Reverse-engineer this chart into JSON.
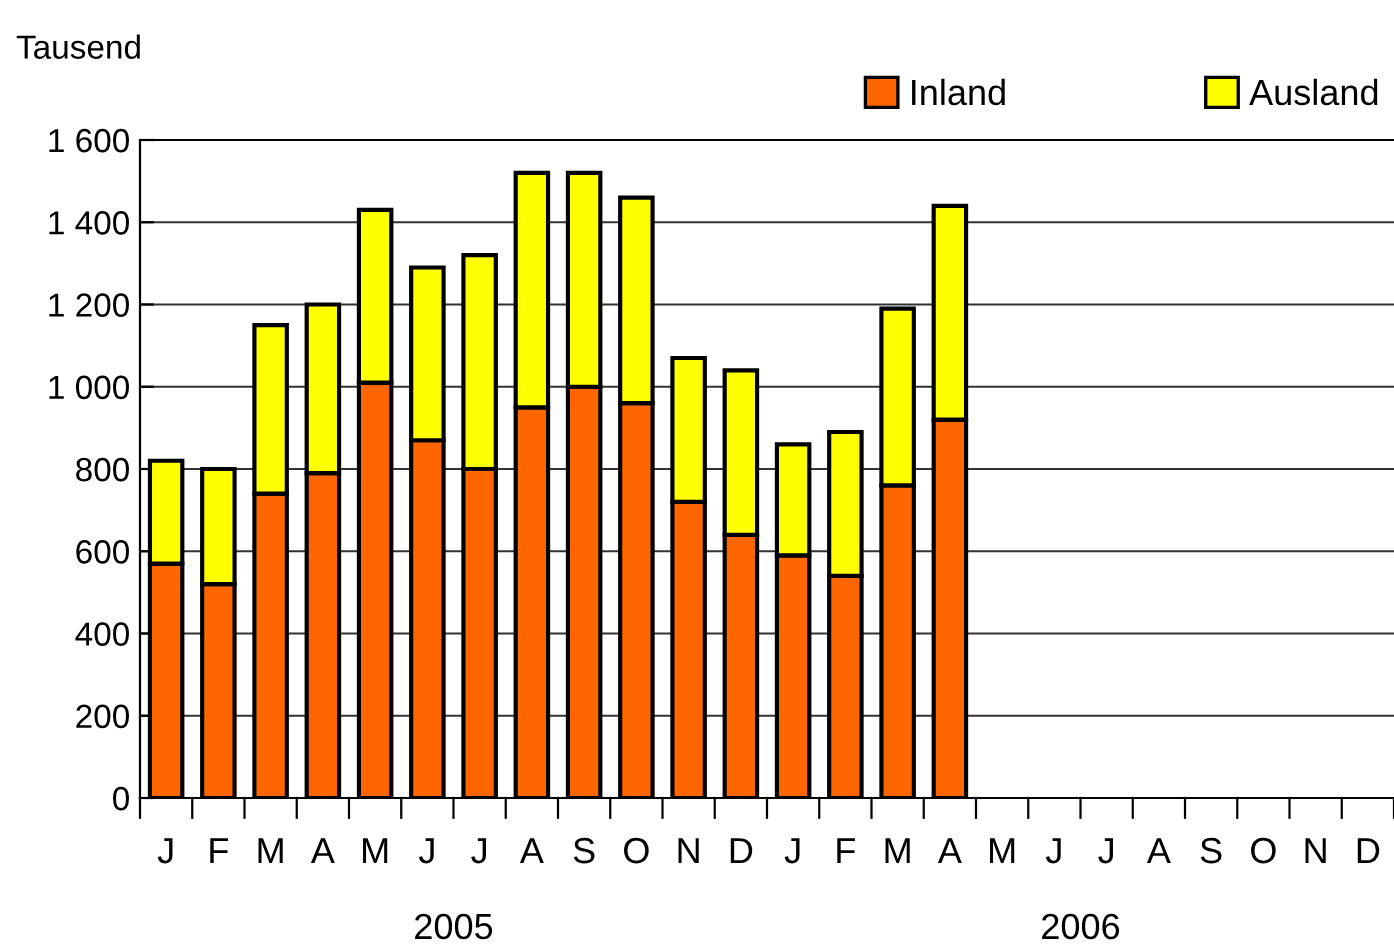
{
  "chart_data": {
    "type": "bar",
    "stacked": true,
    "ylabel": "Tausend",
    "categories": [
      "J",
      "F",
      "M",
      "A",
      "M",
      "J",
      "J",
      "A",
      "S",
      "O",
      "N",
      "D",
      "J",
      "F",
      "M",
      "A",
      "M",
      "J",
      "J",
      "A",
      "S",
      "O",
      "N",
      "D"
    ],
    "series": [
      {
        "name": "Inland",
        "color": "#ff6600",
        "values": [
          570,
          520,
          740,
          790,
          1010,
          870,
          800,
          950,
          1000,
          960,
          720,
          640,
          590,
          540,
          760,
          920,
          null,
          null,
          null,
          null,
          null,
          null,
          null,
          null
        ]
      },
      {
        "name": "Ausland",
        "color": "#ffff00",
        "values": [
          250,
          280,
          410,
          410,
          420,
          420,
          520,
          570,
          520,
          500,
          350,
          400,
          270,
          350,
          430,
          520,
          null,
          null,
          null,
          null,
          null,
          null,
          null,
          null
        ]
      }
    ],
    "ylim": [
      0,
      1600
    ],
    "yticks": [
      0,
      200,
      400,
      600,
      800,
      {
        "value": 1000,
        "label": "1 000"
      },
      {
        "value": 1200,
        "label": "1 200"
      },
      {
        "value": 1400,
        "label": "1 400"
      },
      {
        "value": 1600,
        "label": "1 600"
      }
    ],
    "grid": "y",
    "legend": "top right",
    "annotations": [
      "2005",
      "2006"
    ]
  }
}
